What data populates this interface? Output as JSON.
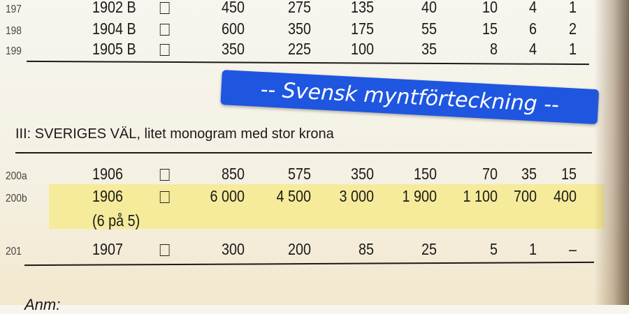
{
  "rows_top": [
    {
      "num": "197",
      "year": "1902 B",
      "values": [
        "450",
        "275",
        "135",
        "40",
        "10",
        "4",
        "1"
      ]
    },
    {
      "num": "198",
      "year": "1904 B",
      "values": [
        "600",
        "350",
        "175",
        "55",
        "15",
        "6",
        "2"
      ]
    },
    {
      "num": "199",
      "year": "1905 B",
      "values": [
        "350",
        "225",
        "100",
        "35",
        "8",
        "4",
        "1"
      ]
    }
  ],
  "section_heading": "III:  SVERIGES VÄL, litet monogram med stor krona",
  "rows_bottom": [
    {
      "num": "200a",
      "year": "1906",
      "values": [
        "850",
        "575",
        "350",
        "150",
        "70",
        "35",
        "15"
      ]
    },
    {
      "num": "200b",
      "year": "1906",
      "note": "(6 på 5)",
      "values": [
        "6 000",
        "4 500",
        "3 000",
        "1 900",
        "1 100",
        "700",
        "400"
      ],
      "highlight_color": "#f5ea8e"
    },
    {
      "num": "201",
      "year": "1907",
      "values": [
        "300",
        "200",
        "85",
        "25",
        "5",
        "1",
        "–"
      ]
    }
  ],
  "footer_note": "Anm:",
  "overlay_label": {
    "text": "-- Svensk myntförteckning --",
    "color": "#1f56e0"
  }
}
